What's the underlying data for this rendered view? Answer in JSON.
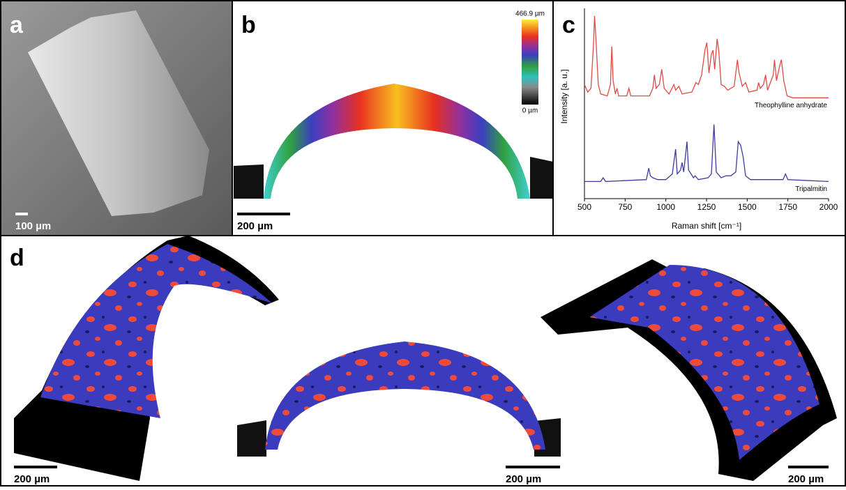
{
  "panels": {
    "a": {
      "label": "a",
      "scale_bar": "100 µm"
    },
    "b": {
      "label": "b",
      "scale_bar": "200 µm",
      "colorbar_max": "466.9 µm",
      "colorbar_min": "0 µm"
    },
    "d": {
      "label": "d",
      "scale_bars": [
        "200 µm",
        "200 µm",
        "200 µm"
      ]
    }
  },
  "chart_data": {
    "type": "line",
    "label": "c",
    "x_label": "Raman shift [cm⁻¹]",
    "y_label": "Intensity [a. u.]",
    "xlim": [
      500,
      2000
    ],
    "xticks": [
      500,
      750,
      1000,
      1250,
      1500,
      1750,
      2000
    ],
    "ylim": [
      0,
      100
    ],
    "series": [
      {
        "name": "Theophylline anhydrate",
        "color": "#e04a42",
        "x": [
          500,
          520,
          540,
          555,
          562,
          570,
          585,
          600,
          640,
          660,
          668,
          676,
          690,
          700,
          710,
          760,
          773,
          785,
          900,
          920,
          930,
          940,
          960,
          975,
          990,
          1020,
          1050,
          1060,
          1080,
          1100,
          1160,
          1185,
          1200,
          1220,
          1240,
          1252,
          1265,
          1280,
          1290,
          1300,
          1315,
          1325,
          1340,
          1360,
          1380,
          1420,
          1440,
          1450,
          1470,
          1490,
          1510,
          1560,
          1570,
          1580,
          1600,
          1613,
          1625,
          1660,
          1668,
          1680,
          1700,
          1710,
          1725,
          1745,
          1780,
          2000
        ],
        "values": [
          60,
          56,
          58,
          80,
          96,
          85,
          60,
          55,
          54,
          60,
          80,
          62,
          55,
          58,
          54,
          54,
          58,
          54,
          54,
          58,
          65,
          58,
          60,
          68,
          58,
          55,
          60,
          57,
          59,
          55,
          56,
          61,
          60,
          65,
          78,
          82,
          66,
          76,
          78,
          68,
          84,
          78,
          60,
          59,
          57,
          59,
          73,
          66,
          59,
          61,
          56,
          57,
          61,
          58,
          60,
          65,
          57,
          65,
          73,
          62,
          70,
          73,
          62,
          54,
          53,
          53
        ]
      },
      {
        "name": "Tripalmitin",
        "color": "#3c3c9c",
        "x": [
          500,
          600,
          615,
          630,
          880,
          895,
          905,
          920,
          950,
          1000,
          1040,
          1060,
          1070,
          1090,
          1100,
          1110,
          1130,
          1140,
          1170,
          1180,
          1200,
          1260,
          1280,
          1296,
          1310,
          1340,
          1370,
          1400,
          1430,
          1445,
          1460,
          1475,
          1490,
          1520,
          1720,
          1735,
          1750,
          2000
        ],
        "values": [
          9,
          9,
          11,
          9,
          10,
          16,
          12,
          11,
          10,
          10,
          13,
          26,
          13,
          15,
          19,
          14,
          30,
          15,
          11,
          12,
          10,
          11,
          13,
          39,
          14,
          11,
          12,
          12,
          14,
          30,
          28,
          22,
          12,
          10,
          10,
          13,
          10,
          9
        ]
      }
    ]
  }
}
